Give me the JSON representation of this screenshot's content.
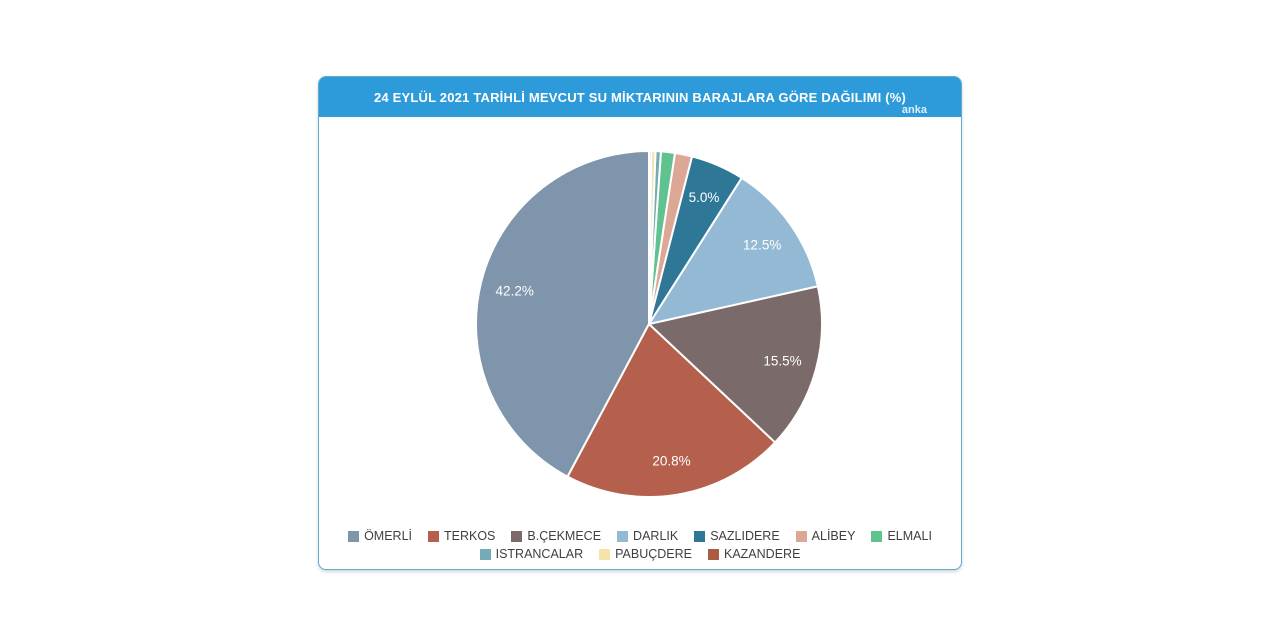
{
  "card": {
    "header": {
      "title": "24 EYLÜL 2021 TARİHLİ MEVCUT SU MİKTARININ BARAJLARA GÖRE DAĞILIMI (%)",
      "watermark": "anka",
      "background": "#2d9bd9",
      "text_color": "#ffffff"
    },
    "border_color": "#68aacb"
  },
  "chart_data": {
    "type": "pie",
    "title": "24 EYLÜL 2021 TARİHLİ MEVCUT SU MİKTARININ BARAJLARA GÖRE DAĞILIMI (%)",
    "categories": [
      "ÖMERLİ",
      "TERKOS",
      "B.ÇEKMECE",
      "DARLIK",
      "SAZLIDERE",
      "ALİBEY",
      "ELMALI",
      "ISTRANCALAR",
      "PABUÇDERE",
      "KAZANDERE"
    ],
    "values": [
      42.2,
      20.8,
      15.5,
      12.5,
      5.0,
      1.6,
      1.3,
      0.5,
      0.4,
      0.2
    ],
    "slice_labels": [
      "42.2%",
      "20.8%",
      "15.5%",
      "12.5%",
      "5.0%",
      "",
      "",
      "",
      "",
      ""
    ],
    "colors": [
      "#7e95ac",
      "#b5604d",
      "#7a6a69",
      "#93b9d5",
      "#2f7796",
      "#dda795",
      "#5fc28f",
      "#74abb4",
      "#f6e3ac",
      "#ac5c42"
    ],
    "label_color": "#ffffff",
    "start_angle_deg": 0,
    "direction": "counterclockwise",
    "legend_position": "bottom",
    "legend_row_break": 7,
    "legend_text_color": "#3f3f3f",
    "slice_stroke": "#ffffff"
  }
}
